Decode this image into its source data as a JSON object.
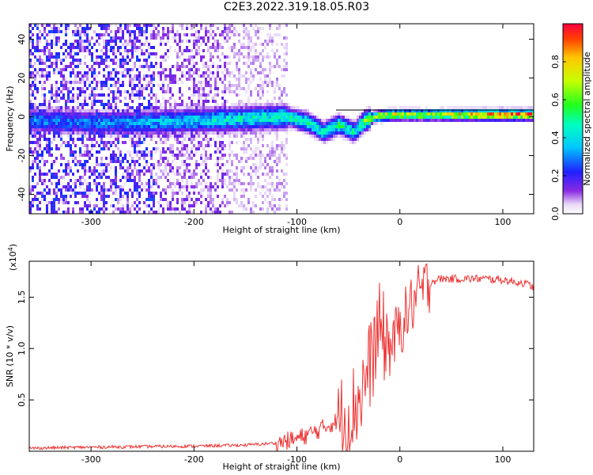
{
  "title": "C2E3.2022.319.18.05.R03",
  "chart_data": [
    {
      "type": "heatmap",
      "xlabel": "Height of straight line (km)",
      "ylabel": "Frequency (Hz)",
      "xlim": [
        -360,
        130
      ],
      "ylim": [
        -50,
        48
      ],
      "xticks": [
        -300,
        -200,
        -100,
        0,
        100
      ],
      "yticks": [
        -40,
        -20,
        0,
        20,
        40
      ],
      "grid": false,
      "colorbar": {
        "label": "Normalized spectral amplitude",
        "range": [
          0.0,
          1.0
        ],
        "ticks": [
          "0.0",
          "0.2",
          "0.4",
          "0.6",
          "0.8"
        ],
        "colormap": "rainbow (white-violet-blue-cyan-green-yellow-red)"
      },
      "signal_track": {
        "description_points_x": [
          -360,
          -300,
          -250,
          -200,
          -150,
          -110,
          -90,
          -75,
          -60,
          -45,
          -35,
          -25,
          -10,
          0,
          50,
          100,
          130
        ],
        "center_freq": [
          -2,
          -3,
          -3,
          -2,
          -1,
          0,
          -3,
          -8,
          -4,
          -8,
          -2,
          0,
          1,
          1,
          1,
          1,
          1
        ],
        "peak_amplitude": [
          0.3,
          0.3,
          0.35,
          0.4,
          0.45,
          0.45,
          0.5,
          0.45,
          0.5,
          0.45,
          0.6,
          0.7,
          0.8,
          0.7,
          0.75,
          0.95,
          0.9
        ]
      }
    },
    {
      "type": "line",
      "xlabel": "Height of straight line (km)",
      "ylabel": "SNR (10 * v/v)",
      "y_scale_label": "(x10",
      "y_scale_exp": "4",
      "xlim": [
        -360,
        130
      ],
      "ylim": [
        0,
        18500
      ],
      "xticks": [
        -300,
        -200,
        -100,
        0,
        100
      ],
      "yticks": [
        5000,
        10000,
        15000
      ],
      "ytick_labels": [
        "0.5",
        "1.0",
        "1.5"
      ],
      "color": "#ee3333",
      "series": [
        {
          "x": [
            -360,
            -300,
            -250,
            -200,
            -150,
            -120,
            -100,
            -80,
            -60,
            -50,
            -40,
            -30,
            -25,
            -20,
            -15,
            -10,
            -5,
            0,
            10,
            20,
            30,
            40,
            60,
            80,
            100,
            110,
            120,
            130
          ],
          "y": [
            300,
            400,
            450,
            500,
            600,
            800,
            1200,
            2000,
            3000,
            3500,
            5000,
            8000,
            10000,
            12000,
            11000,
            10000,
            11000,
            12000,
            14000,
            15500,
            16500,
            16800,
            16800,
            16800,
            16700,
            16500,
            16400,
            16000
          ]
        }
      ]
    }
  ]
}
